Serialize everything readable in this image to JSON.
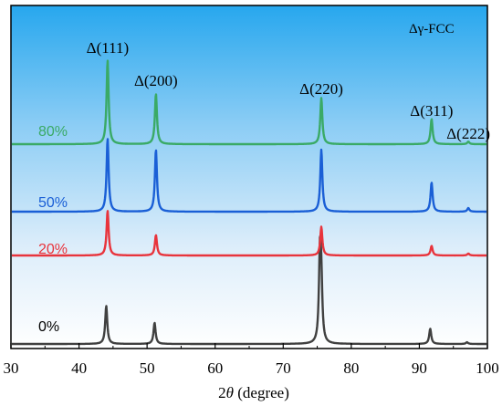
{
  "chart_data": {
    "type": "line",
    "xlabel_prefix": "2",
    "xlabel_theta": "θ",
    "xlabel_suffix": "  (degree)",
    "ylabel": "",
    "xlim": [
      30,
      100
    ],
    "xticks": [
      30,
      40,
      50,
      60,
      70,
      80,
      90,
      100
    ],
    "grid": false,
    "legend_text": "Δγ-FCC",
    "legend_position": "top-right",
    "peak_labels": [
      {
        "text": "Δ(111)",
        "x": 44.2
      },
      {
        "text": "Δ(200)",
        "x": 51.3
      },
      {
        "text": "Δ(220)",
        "x": 75.6
      },
      {
        "text": "Δ(311)",
        "x": 91.8
      },
      {
        "text": "Δ(222)",
        "x": 97.2
      }
    ],
    "series": [
      {
        "name": "0%",
        "color": "#404040",
        "peaks": [
          [
            44.0,
            0.45
          ],
          [
            51.1,
            0.25
          ],
          [
            75.4,
            1.0
          ],
          [
            75.6,
            0.6
          ],
          [
            91.6,
            0.18
          ],
          [
            97.0,
            0.02
          ]
        ]
      },
      {
        "name": "20%",
        "color": "#e8343c",
        "peaks": [
          [
            44.2,
            0.7
          ],
          [
            51.3,
            0.32
          ],
          [
            75.6,
            0.45
          ],
          [
            91.8,
            0.15
          ],
          [
            97.2,
            0.03
          ]
        ]
      },
      {
        "name": "50%",
        "color": "#1a5fd6",
        "peaks": [
          [
            44.2,
            1.0
          ],
          [
            51.3,
            0.85
          ],
          [
            75.6,
            0.85
          ],
          [
            91.8,
            0.4
          ],
          [
            97.2,
            0.05
          ]
        ]
      },
      {
        "name": "80%",
        "color": "#3aaa66",
        "peaks": [
          [
            44.2,
            1.0
          ],
          [
            51.3,
            0.6
          ],
          [
            75.6,
            0.55
          ],
          [
            91.8,
            0.3
          ],
          [
            97.2,
            0.03
          ]
        ]
      }
    ]
  }
}
